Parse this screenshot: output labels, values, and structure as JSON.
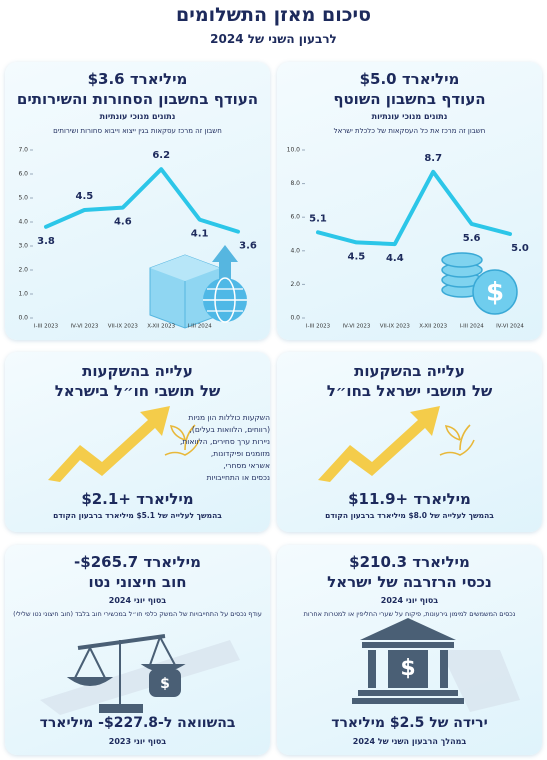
{
  "header": {
    "title": "סיכום מאזן התשלומים",
    "subtitle": "לרבעון השני של 2024"
  },
  "chart_data": [
    {
      "type": "line",
      "title": "$5.0 מיליארד",
      "subtitle": "העודף בחשבון השוטף",
      "tag": "נתונים מנוכי עונתיות",
      "note": "חשבון זה מרכז את כל העסקאות של כלכלת ישראל",
      "categories": [
        "I-III 2023",
        "IV-VI 2023",
        "VII-IX 2023",
        "X-XII 2023",
        "I-III 2024",
        "IV-VI 2024"
      ],
      "values": [
        5.1,
        4.5,
        4.4,
        8.7,
        5.6,
        5.0
      ],
      "value_labels": [
        "5.1",
        "4.5",
        "4.4",
        "8.7",
        "5.6",
        "5.0"
      ],
      "color": "#2cc6e8",
      "ylim": [
        0,
        10
      ],
      "yticks": [
        {
          "value": 0,
          "label": "0.0"
        },
        {
          "value": 2,
          "label": "2.0"
        },
        {
          "value": 4,
          "label": "4.0"
        },
        {
          "value": 6,
          "label": "6.0"
        },
        {
          "value": 8,
          "label": "8.0"
        },
        {
          "value": 10,
          "label": "10.0"
        }
      ]
    },
    {
      "type": "line",
      "title": "$3.6 מיליארד",
      "subtitle": "העודף בחשבון הסחורות והשירותים",
      "tag": "נתונים מנוכי עונתיות",
      "note": "חשבון זה מרכז עסקאות בגין ייצוא וייבוא סחורות ושירותים",
      "categories": [
        "I-III 2023",
        "IV-VI 2023",
        "VII-IX 2023",
        "X-XII 2023",
        "I-III 2024",
        null
      ],
      "values": [
        3.8,
        4.5,
        4.6,
        6.2,
        4.1,
        3.6
      ],
      "value_labels": [
        "3.8",
        "4.5",
        "4.6",
        "6.2",
        "4.1",
        "3.6"
      ],
      "color": "#2cc6e8",
      "ylim": [
        0,
        7
      ],
      "yticks": [
        {
          "value": 0,
          "label": "0.0"
        },
        {
          "value": 1,
          "label": "1.0"
        },
        {
          "value": 2,
          "label": "2.0"
        },
        {
          "value": 3,
          "label": "3.0"
        },
        {
          "value": 4,
          "label": "4.0"
        },
        {
          "value": 5,
          "label": "5.0"
        },
        {
          "value": 6,
          "label": "6.0"
        },
        {
          "value": 7,
          "label": "7.0"
        }
      ]
    }
  ],
  "cards": [
    {
      "heading": [
        "עלייה בהשקעות",
        "של תושבי ישראל בחו״ל"
      ],
      "amount": "$11.9+ מיליארד",
      "note": "בהמשך לעלייה של $8.0 מיליארד ברבעון הקודם"
    },
    {
      "heading": [
        "עלייה בהשקעות",
        "של תושבי חו״ל בישראל"
      ],
      "amount": "$2.1+ מיליארד",
      "note": "בהמשך לעלייה של $5.1 מיליארד ברבעון הקודם",
      "side_note": [
        "השקעות כוללות הון מניות",
        "(רווחים, הלוואות בעלים),",
        "ניירות ערך סחירים, הלוואות,",
        "מזומנים ופיקדונות,",
        "אשראי מסחרי,",
        "נכסים או התחייבויות"
      ]
    },
    {
      "heading": [
        "$210.3 מיליארד",
        "נכסי הרזרבה של ישראל"
      ],
      "date": "בסוף יוני 2024",
      "description": "נכסים המשמשים למימון גירעונות, פיקוח על שערי החליפין או למטרות אחרות",
      "amount": "ירידה של $2.5 מיליארד",
      "note": "במהלך הרבעון השני של 2024"
    },
    {
      "heading": [
        "-$265.7 מיליארד",
        "חוב חיצוני נטו"
      ],
      "date": "בסוף יוני 2024",
      "description": "עודף נכסים על התחייבויות של המשק כלפי חו״ל במכשירי חוב בלבד (חוב חיצוני נטו שלילי)",
      "amount": "בהשוואה ל-$227.8- מיליארד",
      "note": "בסוף יוני 2023"
    }
  ]
}
